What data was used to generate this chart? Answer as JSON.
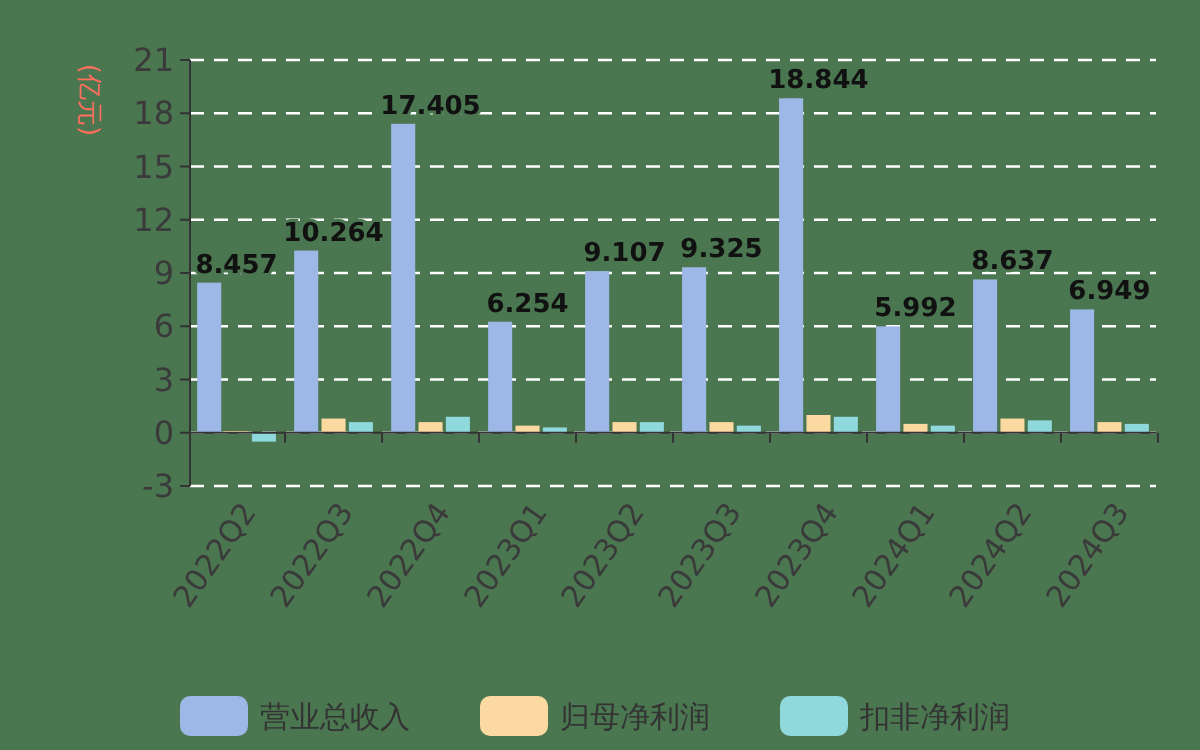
{
  "chart_data": {
    "type": "bar",
    "ylabel": "(亿元)",
    "categories": [
      "2022Q2",
      "2022Q3",
      "2022Q4",
      "2023Q1",
      "2023Q2",
      "2023Q3",
      "2023Q4",
      "2024Q1",
      "2024Q2",
      "2024Q3"
    ],
    "series": [
      {
        "name": "营业总收入",
        "color": "#9db8e6",
        "values": [
          8.457,
          10.264,
          17.405,
          6.254,
          9.107,
          9.325,
          18.844,
          5.992,
          8.637,
          6.949
        ],
        "value_labels": [
          "8.457",
          "10.264",
          "17.405",
          "6.254",
          "9.107",
          "9.325",
          "18.844",
          "5.992",
          "8.637",
          "6.949"
        ]
      },
      {
        "name": "归母净利润",
        "color": "#fcd9a0",
        "values": [
          0.1,
          0.8,
          0.6,
          0.4,
          0.6,
          0.6,
          1.0,
          0.5,
          0.8,
          0.6
        ]
      },
      {
        "name": "扣非净利润",
        "color": "#8fd8dc",
        "values": [
          -0.5,
          0.6,
          0.9,
          0.3,
          0.6,
          0.4,
          0.9,
          0.4,
          0.7,
          0.5
        ]
      }
    ],
    "ylim": [
      -3,
      21
    ],
    "yticks": [
      -3,
      0,
      3,
      6,
      9,
      12,
      15,
      18,
      21
    ],
    "grid": "y",
    "legend": "bottom"
  }
}
